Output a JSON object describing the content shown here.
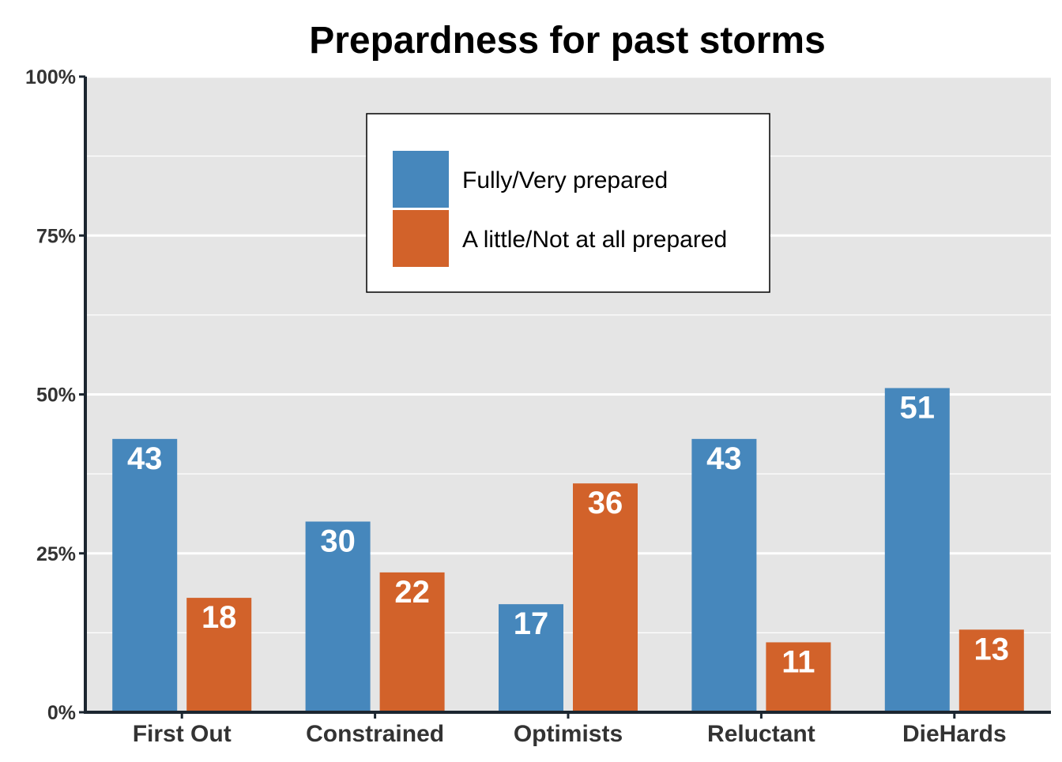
{
  "chart_data": {
    "type": "bar",
    "title": "Prepardness for past storms",
    "xlabel": "",
    "ylabel": "",
    "categories": [
      "First Out",
      "Constrained",
      "Optimists",
      "Reluctant",
      "DieHards"
    ],
    "series": [
      {
        "name": "Fully/Very prepared",
        "values": [
          43,
          30,
          17,
          43,
          51
        ],
        "color": "#4687BC"
      },
      {
        "name": "A little/Not at all prepared",
        "values": [
          18,
          22,
          36,
          11,
          13
        ],
        "color": "#D2622A"
      }
    ],
    "ylim": [
      0,
      100
    ],
    "yticks": [
      0,
      25,
      50,
      75,
      100
    ],
    "ytick_labels": [
      "0%",
      "25%",
      "50%",
      "75%",
      "100%"
    ],
    "grid": true,
    "legend_position": "top-center",
    "panel_color": "#E5E5E5",
    "gridline_color": "#FFFFFF",
    "axis_color": "#1C2630"
  }
}
